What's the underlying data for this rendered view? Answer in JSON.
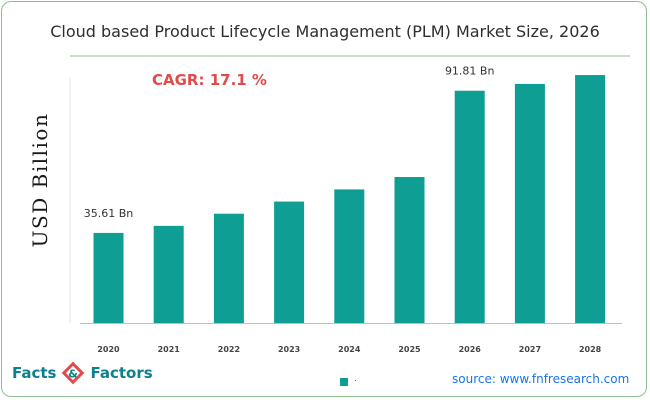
{
  "title": "Cloud based Product Lifecycle Management (PLM) Market Size, 2026",
  "annotation": "CAGR: 17.1 %",
  "source": "source: www.fnfresearch.com",
  "logo": {
    "left": "Facts",
    "right": "Factors"
  },
  "legend_label": ".",
  "colors": {
    "bar": "#0f9e94",
    "accent": "#e04b4b",
    "logo": "#0e7f8c",
    "source": "#1a73e8"
  },
  "chart_data": {
    "type": "bar",
    "title": "Cloud based Product Lifecycle Management (PLM) Market Size, 2026",
    "ylabel": "USD Billion",
    "xlabel": "",
    "categories": [
      "2020",
      "2021",
      "2022",
      "2023",
      "2024",
      "2025",
      "2026",
      "2027",
      "2028"
    ],
    "values": [
      35.61,
      38.4,
      43.2,
      48.0,
      52.8,
      57.7,
      91.81,
      94.5,
      98.0
    ],
    "data_labels": [
      {
        "category": "2020",
        "text": "35.61 Bn"
      },
      {
        "category": "2026",
        "text": "91.81 Bn"
      }
    ],
    "ylim": [
      0,
      100
    ],
    "grid": false,
    "legend": "bottom-center"
  }
}
